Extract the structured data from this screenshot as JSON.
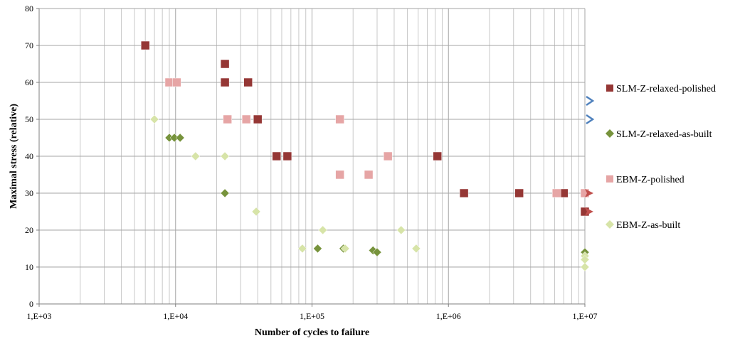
{
  "chart_data": {
    "type": "scatter",
    "title": "",
    "xlabel": "Number of cycles to failure",
    "ylabel": "Maximal stress (relative)",
    "x_scale": "log",
    "xlim": [
      1000,
      10000000
    ],
    "ylim": [
      0,
      80
    ],
    "x_ticks": [
      1000,
      10000,
      100000,
      1000000,
      10000000
    ],
    "x_tick_labels": [
      "1,E+03",
      "1,E+04",
      "1,E+05",
      "1,E+06",
      "1,E+07"
    ],
    "y_ticks": [
      0,
      10,
      20,
      30,
      40,
      50,
      60,
      70,
      80
    ],
    "y_tick_labels": [
      "0",
      "10",
      "20",
      "30",
      "40",
      "50",
      "60",
      "70",
      "80"
    ],
    "grid": true,
    "legend_position": "right",
    "series": [
      {
        "name": "SLM-Z-relaxed-polished",
        "marker": "square",
        "color": "#953735",
        "points": [
          [
            6000,
            70
          ],
          [
            23000,
            65
          ],
          [
            23000,
            60
          ],
          [
            34000,
            60
          ],
          [
            40000,
            50
          ],
          [
            55000,
            40
          ],
          [
            66000,
            40
          ],
          [
            830000,
            40
          ],
          [
            1300000,
            30
          ],
          [
            3300000,
            30
          ],
          [
            7000000,
            30
          ],
          [
            10000000,
            25
          ]
        ]
      },
      {
        "name": "SLM-Z-relaxed-as-built",
        "marker": "diamond",
        "color": "#77933c",
        "points": [
          [
            9000,
            45
          ],
          [
            9800,
            45
          ],
          [
            10800,
            45
          ],
          [
            23000,
            30
          ],
          [
            110000,
            15
          ],
          [
            170000,
            15
          ],
          [
            280000,
            14.5
          ],
          [
            300000,
            14
          ],
          [
            10000000,
            14
          ]
        ]
      },
      {
        "name": "EBM-Z-polished",
        "marker": "square",
        "color": "#e6a5a5",
        "points": [
          [
            9000,
            60
          ],
          [
            10200,
            60
          ],
          [
            24000,
            50
          ],
          [
            33000,
            50
          ],
          [
            160000,
            50
          ],
          [
            160000,
            35
          ],
          [
            260000,
            35
          ],
          [
            360000,
            40
          ],
          [
            6200000,
            30
          ],
          [
            10000000,
            30
          ]
        ]
      },
      {
        "name": "EBM-Z-as-built",
        "marker": "diamond",
        "color": "#d7e4a8",
        "points": [
          [
            7000,
            50
          ],
          [
            14000,
            40
          ],
          [
            23000,
            40
          ],
          [
            39000,
            25
          ],
          [
            85000,
            15
          ],
          [
            120000,
            20
          ],
          [
            175000,
            15
          ],
          [
            450000,
            20
          ],
          [
            580000,
            15
          ],
          [
            10000000,
            13
          ],
          [
            10000000,
            12
          ],
          [
            10000000,
            10
          ]
        ]
      }
    ],
    "runout_arrows": [
      {
        "x": 10000000,
        "y": 55,
        "color": "#4f81bd",
        "style": "open"
      },
      {
        "x": 10000000,
        "y": 50,
        "color": "#4f81bd",
        "style": "open"
      },
      {
        "x": 10000000,
        "y": 30,
        "color": "#c0504d",
        "style": "solid"
      },
      {
        "x": 10000000,
        "y": 25,
        "color": "#c0504d",
        "style": "solid"
      }
    ]
  }
}
